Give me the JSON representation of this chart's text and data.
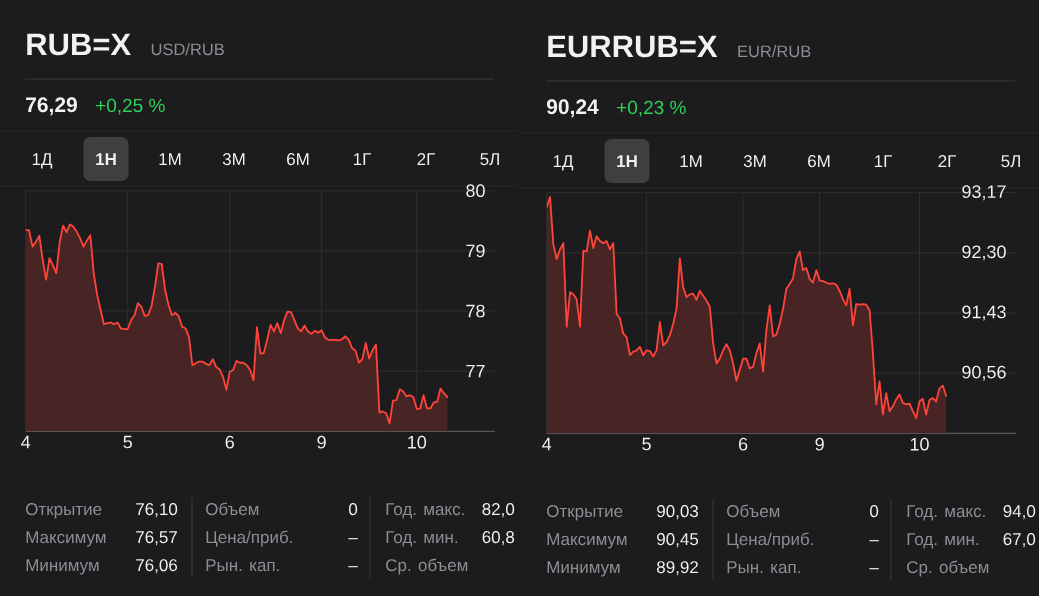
{
  "chart_data": [
    {
      "type": "area",
      "title": "RUB=X",
      "subtitle": "USD/RUB",
      "annotations": [
        "76,29",
        "+0,25 %",
        "1Д",
        "1Н",
        "1М",
        "3М",
        "6М",
        "1Г",
        "2Г",
        "5Л",
        "Открытие",
        "76,10",
        "Объем",
        "0",
        "Год. макс.",
        "82,0",
        "Максимум",
        "76,57",
        "Цена/приб.",
        "–",
        "Год. мин.",
        "60,8",
        "Минимум",
        "76,06",
        "Рын. кап.",
        "–",
        "Ср. объем"
      ],
      "categories": [
        "4",
        null,
        null,
        null,
        null,
        null,
        null,
        null,
        null,
        null,
        null,
        null,
        null,
        null,
        null,
        null,
        null,
        null,
        null,
        null,
        null,
        null,
        null,
        null,
        null,
        null,
        null,
        null,
        null,
        null,
        "5",
        null,
        null,
        null,
        null,
        null,
        null,
        null,
        null,
        null,
        null,
        null,
        null,
        null,
        null,
        null,
        null,
        null,
        null,
        null,
        null,
        null,
        null,
        null,
        null,
        null,
        null,
        null,
        null,
        null,
        "6",
        null,
        null,
        null,
        null,
        null,
        null,
        null,
        null,
        null,
        null,
        null,
        null,
        null,
        null,
        null,
        null,
        null,
        null,
        null,
        null,
        null,
        null,
        null,
        null,
        null,
        null,
        "9",
        null,
        null,
        null,
        null,
        null,
        null,
        null,
        null,
        null,
        null,
        null,
        null,
        null,
        null,
        null,
        null,
        null,
        null,
        null,
        null,
        null,
        null,
        null,
        null,
        null,
        null,
        null,
        "10",
        null,
        null,
        null,
        null,
        null,
        null,
        null,
        null,
        null,
        null,
        null,
        null,
        null,
        null,
        null,
        null,
        null,
        null,
        null,
        null,
        null,
        null,
        null
      ],
      "values": [
        79.35,
        79.34,
        79.07,
        79.15,
        79.25,
        78.85,
        78.52,
        78.88,
        78.76,
        78.63,
        79.15,
        79.42,
        79.31,
        79.44,
        79.4,
        79.32,
        79.21,
        79.07,
        79.17,
        79.26,
        78.63,
        78.27,
        78.02,
        77.78,
        77.8,
        77.81,
        77.78,
        77.81,
        77.71,
        77.7,
        77.7,
        77.85,
        77.93,
        78.13,
        78.07,
        77.92,
        77.93,
        78.08,
        78.4,
        78.79,
        78.78,
        78.35,
        78.1,
        77.93,
        77.97,
        77.91,
        77.74,
        77.71,
        77.57,
        77.1,
        77.13,
        77.16,
        77.16,
        77.12,
        77.1,
        77.2,
        77.07,
        77.03,
        76.91,
        76.69,
        76.99,
        77.02,
        77.17,
        77.14,
        77.14,
        77.1,
        77.02,
        76.85,
        77.73,
        77.29,
        77.3,
        77.52,
        77.77,
        77.66,
        77.8,
        77.63,
        77.85,
        77.99,
        77.98,
        77.85,
        77.71,
        77.66,
        77.76,
        77.66,
        77.62,
        77.67,
        77.64,
        77.68,
        77.56,
        77.52,
        77.52,
        77.52,
        77.51,
        77.53,
        77.58,
        77.52,
        77.38,
        77.34,
        77.14,
        77.2,
        77.47,
        77.21,
        77.35,
        77.44,
        76.31,
        76.33,
        76.3,
        76.13,
        76.51,
        76.52,
        76.7,
        76.66,
        76.58,
        76.6,
        76.57,
        76.37,
        76.38,
        76.6,
        76.38,
        76.38,
        76.48,
        76.49,
        76.71,
        76.63,
        76.57,
        null,
        null,
        null,
        null,
        null,
        null,
        null,
        null,
        null,
        null,
        null,
        null,
        null,
        null
      ],
      "color": "#ff453a",
      "ylim": [
        76,
        80
      ],
      "yticks": [
        80,
        79,
        78,
        77,
        {
          "value": 76,
          "label": null
        }
      ],
      "grid": true
    },
    {
      "type": "area",
      "title": "EURRUB=X",
      "subtitle": "EUR/RUB",
      "annotations": [
        "90,24",
        "+0,23 %",
        "1Д",
        "1Н",
        "1М",
        "3М",
        "6М",
        "1Г",
        "2Г",
        "5Л",
        "Открытие",
        "90,03",
        "Объем",
        "0",
        "Год. макс.",
        "94,0",
        "Максимум",
        "90,45",
        "Цена/приб.",
        "–",
        "Год. мин.",
        "67,0",
        "Минимум",
        "89,92",
        "Рын. кап.",
        "–",
        "Ср. объем"
      ],
      "categories": [
        "4",
        null,
        null,
        null,
        null,
        null,
        null,
        null,
        null,
        null,
        null,
        null,
        null,
        null,
        null,
        null,
        null,
        null,
        null,
        null,
        null,
        null,
        null,
        null,
        null,
        null,
        null,
        null,
        null,
        null,
        "5",
        null,
        null,
        null,
        null,
        null,
        null,
        null,
        null,
        null,
        null,
        null,
        null,
        null,
        null,
        null,
        null,
        null,
        null,
        null,
        null,
        null,
        null,
        null,
        null,
        null,
        null,
        null,
        null,
        "6",
        null,
        null,
        null,
        null,
        null,
        null,
        null,
        null,
        null,
        null,
        null,
        null,
        null,
        null,
        null,
        null,
        null,
        null,
        null,
        null,
        null,
        null,
        "9",
        null,
        null,
        null,
        null,
        null,
        null,
        null,
        null,
        null,
        null,
        null,
        null,
        null,
        null,
        null,
        null,
        null,
        null,
        null,
        null,
        null,
        null,
        null,
        null,
        null,
        null,
        null,
        null,
        null,
        "10",
        null,
        null,
        null,
        null,
        null,
        null,
        null,
        null,
        null,
        null,
        null,
        null,
        null,
        null,
        null,
        null,
        null,
        null,
        null,
        null,
        null,
        null,
        null,
        null,
        null,
        null,
        null,
        null,
        null
      ],
      "values": [
        92.96,
        93.11,
        92.42,
        92.21,
        92.35,
        92.44,
        91.23,
        91.73,
        91.7,
        91.63,
        91.23,
        92.33,
        92.32,
        92.62,
        92.37,
        92.54,
        92.47,
        92.44,
        92.47,
        92.35,
        92.44,
        91.42,
        91.35,
        91.13,
        91.08,
        90.82,
        90.87,
        90.89,
        90.94,
        90.82,
        90.89,
        90.88,
        90.8,
        90.89,
        91.3,
        90.96,
        91.01,
        91.11,
        91.27,
        91.49,
        92.22,
        91.8,
        91.66,
        91.7,
        91.71,
        91.62,
        91.75,
        91.68,
        91.61,
        91.52,
        90.99,
        90.7,
        90.77,
        90.89,
        90.98,
        90.89,
        90.7,
        90.45,
        90.61,
        90.77,
        90.77,
        90.63,
        90.65,
        90.85,
        90.99,
        90.58,
        91.18,
        91.54,
        91.09,
        91.12,
        91.27,
        91.49,
        91.78,
        91.85,
        91.93,
        92.21,
        92.32,
        92.05,
        92.08,
        91.92,
        91.87,
        92.05,
        91.9,
        91.89,
        91.87,
        91.85,
        91.86,
        91.84,
        91.75,
        91.63,
        91.54,
        91.78,
        91.25,
        91.56,
        91.55,
        91.56,
        91.55,
        91.47,
        90.85,
        90.11,
        90.44,
        89.96,
        90.27,
        90.01,
        90.08,
        90.18,
        90.25,
        90.13,
        90.11,
        90.12,
        90.01,
        89.91,
        90.15,
        90.19,
        89.96,
        90.17,
        90.2,
        90.15,
        90.34,
        90.38,
        90.23,
        null,
        null,
        null,
        null,
        null,
        null,
        null,
        null,
        null,
        null,
        null,
        null,
        null,
        null,
        null,
        null,
        null,
        null,
        null,
        null,
        null
      ],
      "color": "#ff453a",
      "ylim": [
        89.69,
        93.17
      ],
      "yticks": [
        {
          "value": 93.17,
          "label": "93,17"
        },
        {
          "value": 92.3,
          "label": "92,30"
        },
        {
          "value": 91.43,
          "label": "91,43"
        },
        {
          "value": 90.56,
          "label": "90,56"
        },
        {
          "value": 89.69,
          "label": null
        }
      ],
      "grid": true
    }
  ]
}
